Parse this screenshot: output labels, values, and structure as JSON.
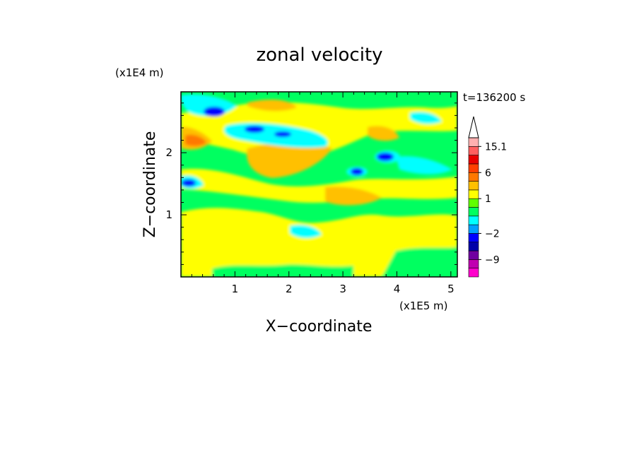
{
  "chart_data": {
    "type": "heatmap",
    "title": "zonal velocity",
    "xlabel": "X−coordinate",
    "ylabel": "Z−coordinate",
    "x_unit": "(x1E5 m)",
    "y_unit": "(x1E4 m)",
    "time_label": "t=136200 s",
    "xlim": [
      0,
      5.12
    ],
    "ylim": [
      0,
      2.98
    ],
    "x_ticks": [
      1,
      2,
      3,
      4,
      5
    ],
    "y_ticks": [
      1,
      2
    ],
    "x_tick_labels": [
      "1",
      "2",
      "3",
      "4",
      "5"
    ],
    "y_tick_labels": [
      "1",
      "2"
    ],
    "colorbar": {
      "levels": [
        -15,
        -12,
        -9,
        -6,
        -3,
        -2,
        -1,
        0,
        0.5,
        1,
        2,
        3,
        6,
        9,
        12,
        15.1
      ],
      "colors": [
        "#ff00cc",
        "#c000b0",
        "#7000a0",
        "#0000a8",
        "#0000ff",
        "#00a0ff",
        "#00ffff",
        "#00ff60",
        "#60ff00",
        "#ffff00",
        "#ffc000",
        "#ff7800",
        "#ff4000",
        "#e80000",
        "#ff6060",
        "#ffb0b0"
      ],
      "extend_max_color": "#ffffff",
      "labels": [
        "15.1",
        "6",
        "1",
        "−2",
        "−9"
      ],
      "label_values": [
        15.1,
        6,
        1,
        -2,
        -9
      ]
    },
    "field_description_values": {
      "background_level": "green/yellow (~0 to 2)",
      "min_value": -9,
      "max_value": 15.1
    }
  }
}
